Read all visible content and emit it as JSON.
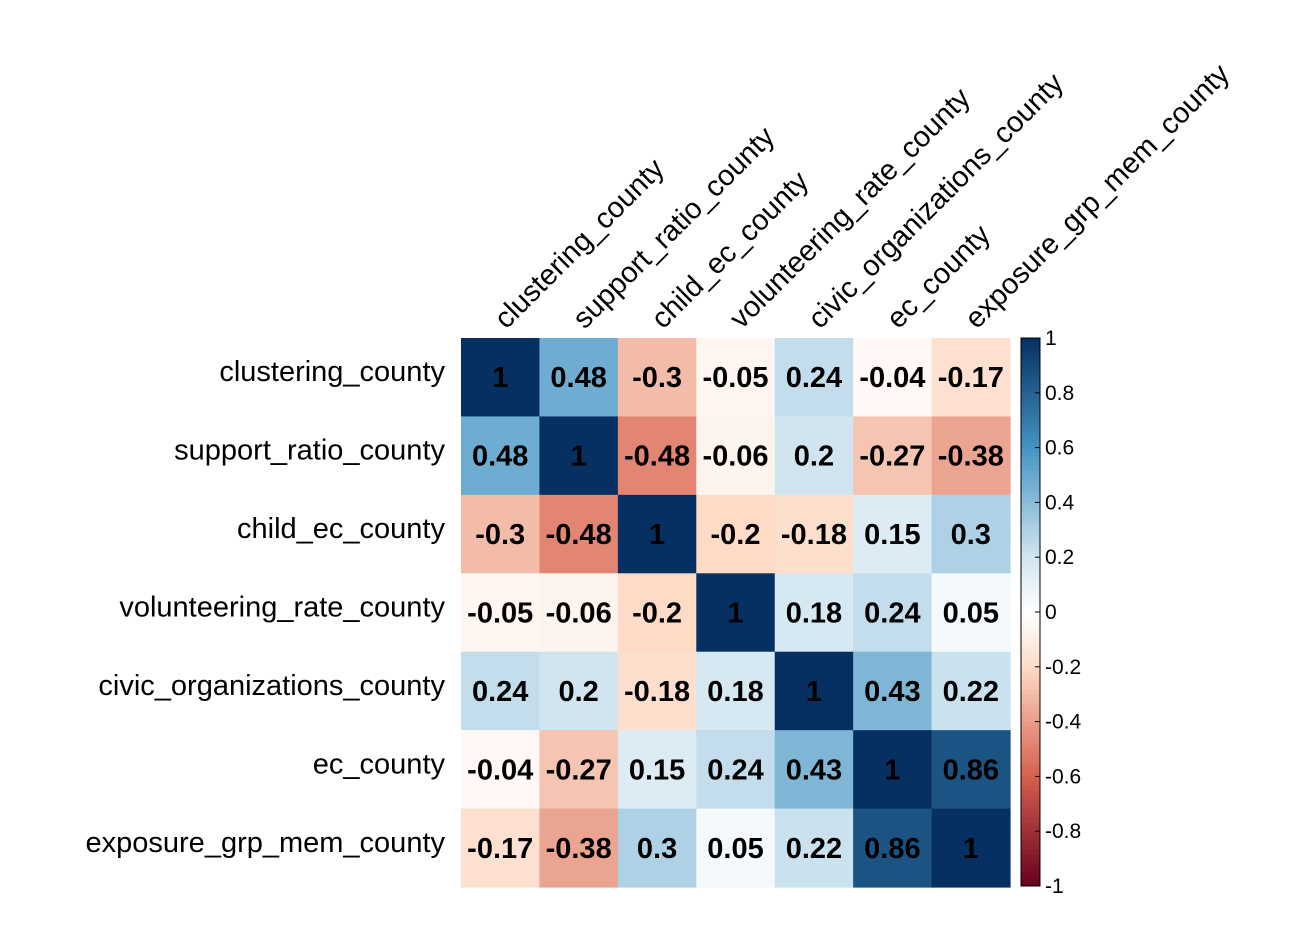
{
  "chart_data": {
    "type": "heatmap",
    "title": "",
    "variables": [
      "clustering_county",
      "support_ratio_county",
      "child_ec_county",
      "volunteering_rate_county",
      "civic_organizations_county",
      "ec_county",
      "exposure_grp_mem_county"
    ],
    "matrix": [
      [
        1,
        0.48,
        -0.3,
        -0.05,
        0.24,
        -0.04,
        -0.17
      ],
      [
        0.48,
        1,
        -0.48,
        -0.06,
        0.2,
        -0.27,
        -0.38
      ],
      [
        -0.3,
        -0.48,
        1,
        -0.2,
        -0.18,
        0.15,
        0.3
      ],
      [
        -0.05,
        -0.06,
        -0.2,
        1,
        0.18,
        0.24,
        0.05
      ],
      [
        0.24,
        0.2,
        -0.18,
        0.18,
        1,
        0.43,
        0.22
      ],
      [
        -0.04,
        -0.27,
        0.15,
        0.24,
        0.43,
        1,
        0.86
      ],
      [
        -0.17,
        -0.38,
        0.3,
        0.05,
        0.22,
        0.86,
        1
      ]
    ],
    "value_range": [
      -1,
      1
    ],
    "colorbar": {
      "ticks": [
        "1",
        "0.8",
        "0.6",
        "0.4",
        "0.2",
        "0",
        "-0.2",
        "-0.4",
        "-0.6",
        "-0.8",
        "-1"
      ],
      "placement": "right"
    },
    "color_scale": {
      "negative_end": "#67001f",
      "mid_negative": "#d6604d",
      "light_negative": "#fddbc7",
      "zero": "#ffffff",
      "light_positive": "#d1e5f0",
      "mid_positive": "#4393c3",
      "positive_end": "#053061"
    },
    "column_label_rotation": "45deg",
    "grid": false
  }
}
